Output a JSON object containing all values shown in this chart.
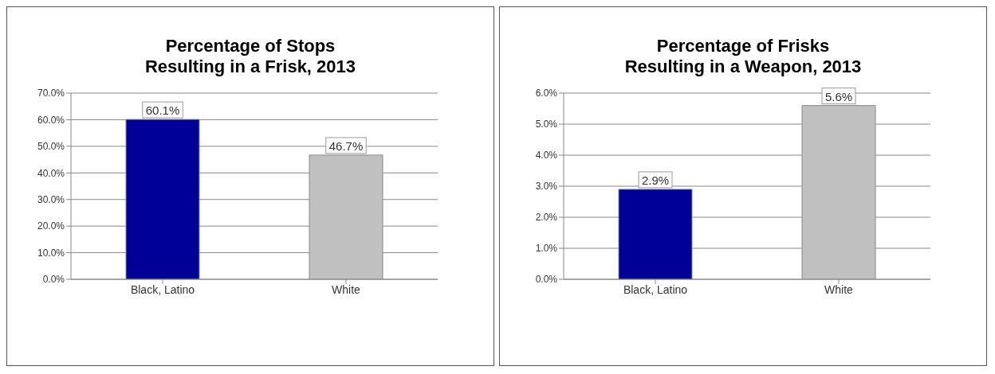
{
  "chart_data": [
    {
      "type": "bar",
      "title": "Percentage of Stops\nResulting in a Frisk, 2013",
      "categories": [
        "Black, Latino",
        "White"
      ],
      "values": [
        60.1,
        46.7
      ],
      "colors": [
        "#000099",
        "#c0c0c0"
      ],
      "value_labels": [
        "60.1%",
        "46.7%"
      ],
      "ylim": [
        0,
        70
      ],
      "yticks": [
        {
          "value": 0,
          "label": "0.0%"
        },
        {
          "value": 10,
          "label": "10.0%"
        },
        {
          "value": 20,
          "label": "20.0%"
        },
        {
          "value": 30,
          "label": "30.0%"
        },
        {
          "value": 40,
          "label": "40.0%"
        },
        {
          "value": 50,
          "label": "50.0%"
        },
        {
          "value": 60,
          "label": "60.0%"
        },
        {
          "value": 70,
          "label": "70.0%"
        }
      ],
      "grid": "y",
      "legend": false
    },
    {
      "type": "bar",
      "title": "Percentage of Frisks\nResulting in a Weapon, 2013",
      "categories": [
        "Black, Latino",
        "White"
      ],
      "values": [
        2.9,
        5.6
      ],
      "colors": [
        "#000099",
        "#c0c0c0"
      ],
      "value_labels": [
        "2.9%",
        "5.6%"
      ],
      "ylim": [
        0,
        6
      ],
      "yticks": [
        {
          "value": 0,
          "label": "0.0%"
        },
        {
          "value": 1,
          "label": "1.0%"
        },
        {
          "value": 2,
          "label": "2.0%"
        },
        {
          "value": 3,
          "label": "3.0%"
        },
        {
          "value": 4,
          "label": "4.0%"
        },
        {
          "value": 5,
          "label": "5.0%"
        },
        {
          "value": 6,
          "label": "6.0%"
        }
      ],
      "grid": "y",
      "legend": false
    }
  ]
}
